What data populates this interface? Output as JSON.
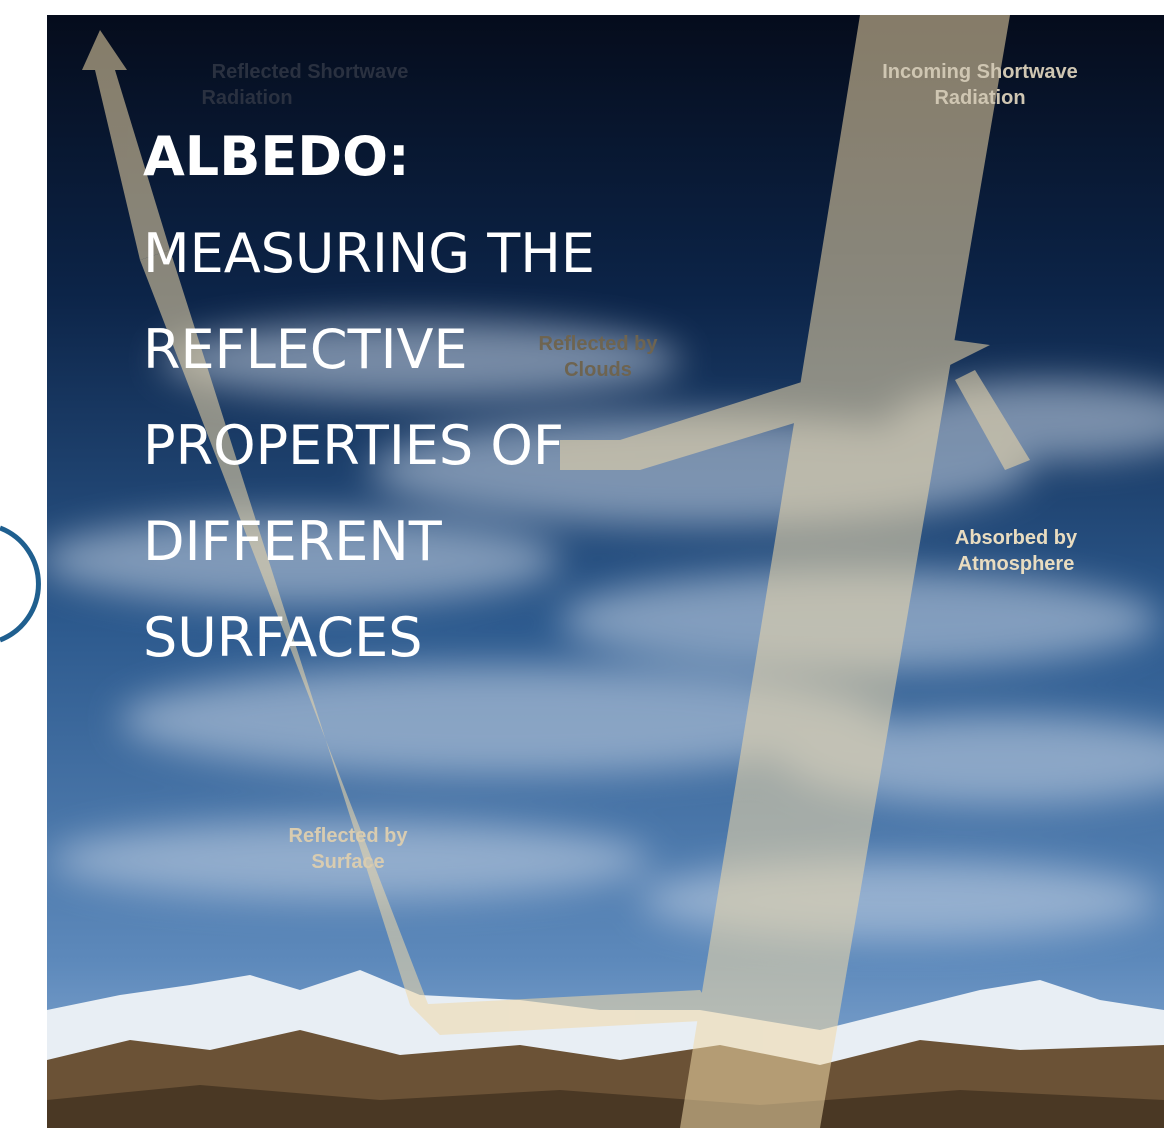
{
  "poster": {
    "title": "ALBEDO:",
    "subtitle_lines": [
      "MEASURING THE",
      "REFLECTIVE",
      "PROPERTIES OF",
      "DIFFERENT",
      "SURFACES"
    ],
    "labels": {
      "reflected_shortwave": [
        "Reflected Shortwave",
        "Radiation"
      ],
      "incoming_shortwave": [
        "Incoming Shortwave",
        "Radiation"
      ],
      "reflected_by_clouds": [
        "Reflected by",
        "Clouds"
      ],
      "absorbed_by_atmosphere": [
        "Absorbed by",
        "Atmosphere"
      ],
      "reflected_by_surface": [
        "Reflected by",
        "Surface"
      ]
    }
  }
}
